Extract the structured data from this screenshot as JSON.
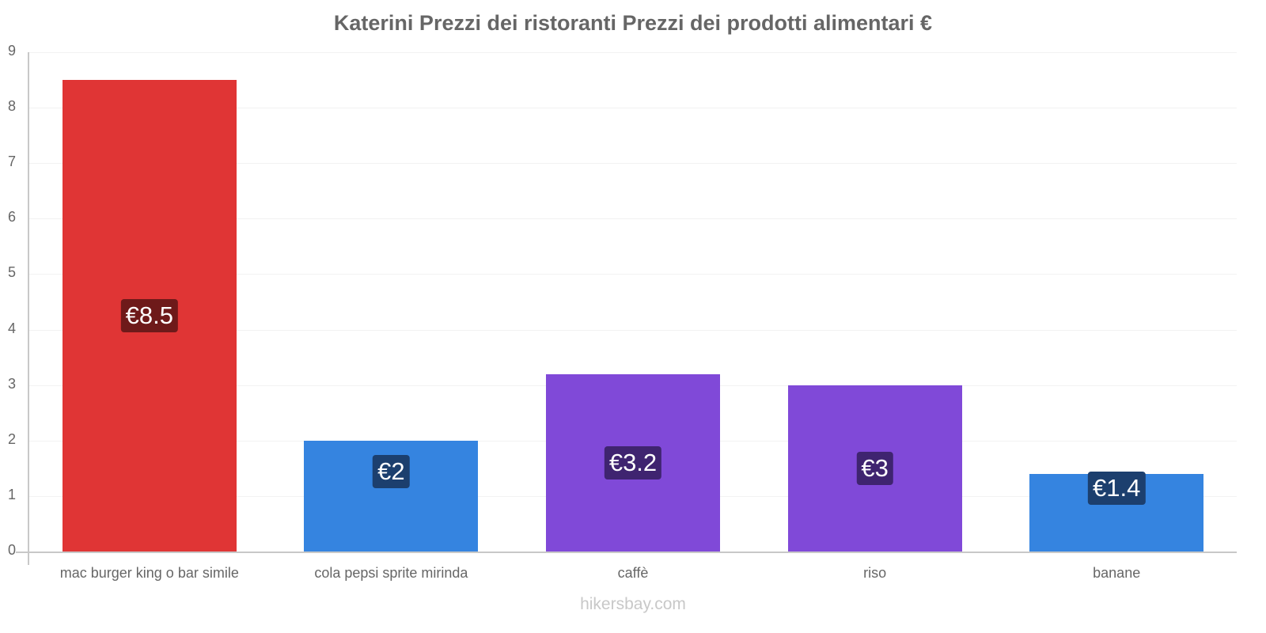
{
  "title": "Katerini Prezzi dei ristoranti Prezzi dei prodotti alimentari €",
  "footer": "hikersbay.com",
  "chart_data": {
    "type": "bar",
    "title": "Katerini Prezzi dei ristoranti Prezzi dei prodotti alimentari €",
    "xlabel": "",
    "ylabel": "",
    "categories": [
      "mac burger king o bar simile",
      "cola pepsi sprite mirinda",
      "caffè",
      "riso",
      "banane"
    ],
    "values": [
      8.5,
      2,
      3.2,
      3,
      1.4
    ],
    "value_labels": [
      "€8.5",
      "€2",
      "€3.2",
      "€3",
      "€1.4"
    ],
    "bar_colors": [
      "#e03535",
      "#3584e0",
      "#8049d8",
      "#8049d8",
      "#3584e0"
    ],
    "label_colors": [
      "#6e1a1a",
      "#1c3f6e",
      "#3f2470",
      "#3f2470",
      "#1c3f6e"
    ],
    "ylim": [
      0,
      9
    ],
    "yticks": [
      0,
      1,
      2,
      3,
      4,
      5,
      6,
      7,
      8,
      9
    ],
    "grid": true,
    "legend": "none"
  }
}
